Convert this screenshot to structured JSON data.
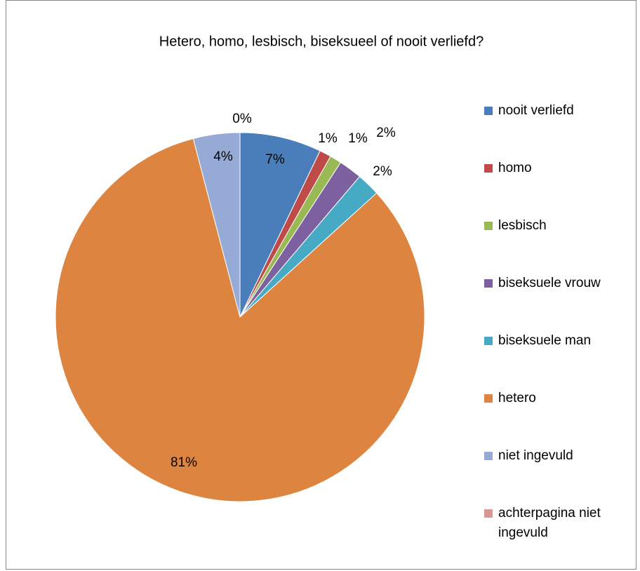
{
  "chart_data": {
    "type": "pie",
    "title": "Hetero, homo, lesbisch, biseksueel of nooit verliefd?",
    "categories": [
      "nooit verliefd",
      "homo",
      "lesbisch",
      "biseksuele vrouw",
      "biseksuele man",
      "hetero",
      "niet ingevuld",
      "achterpagina niet ingevuld"
    ],
    "values": [
      7,
      1,
      1,
      2,
      2,
      81,
      4,
      0
    ],
    "value_labels": [
      "7%",
      "1%",
      "1%",
      "2%",
      "2%",
      "81%",
      "4%",
      "0%"
    ],
    "colors": [
      "#4a7ebb",
      "#be4b48",
      "#98b954",
      "#7d60a0",
      "#46aac5",
      "#dd8540",
      "#95abd5",
      "#d99694"
    ],
    "legend": "right"
  }
}
